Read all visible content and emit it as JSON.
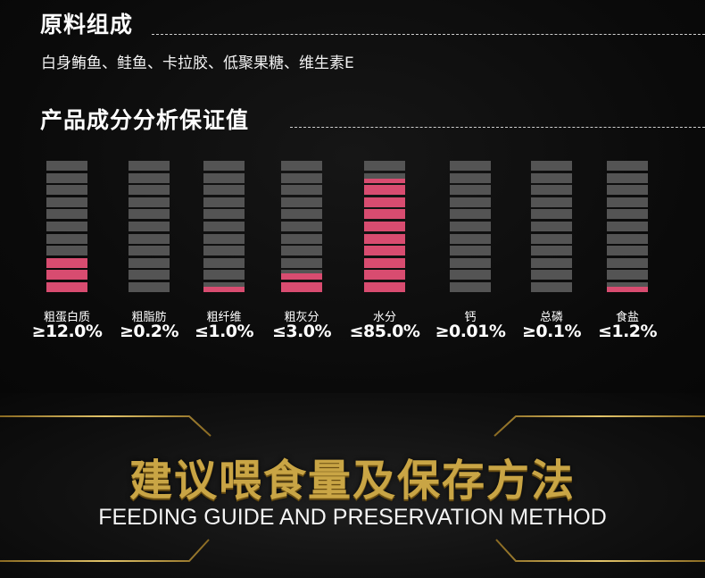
{
  "section1": {
    "title": "原料组成",
    "ingredients": "白身鲔鱼、鲑鱼、卡拉胶、低聚果糖、维生素E"
  },
  "section2": {
    "title": "产品成分分析保证值"
  },
  "nutrients": [
    {
      "label": "粗蛋白质",
      "value": "≥12.0%",
      "level": 0.29
    },
    {
      "label": "粗脂肪",
      "value": "≥0.2%",
      "level": 0.03
    },
    {
      "label": "粗纤维",
      "value": "≤1.0%",
      "level": 0.07
    },
    {
      "label": "粗灰分",
      "value": "≤3.0%",
      "level": 0.17
    },
    {
      "label": "水分",
      "value": "≤85.0%",
      "level": 0.87
    },
    {
      "label": "钙",
      "value": "≥0.01%",
      "level": 0.01
    },
    {
      "label": "总磷",
      "value": "≥0.1%",
      "level": 0.02
    },
    {
      "label": "食盐",
      "value": "≤1.2%",
      "level": 0.07
    }
  ],
  "feeding": {
    "title": "建议喂食量及保存方法",
    "subtitle": "FEEDING GUIDE AND PRESERVATION METHOD"
  },
  "colors": {
    "fill": "#d84c70",
    "segment": "#545454",
    "gold": "#c9a545"
  }
}
